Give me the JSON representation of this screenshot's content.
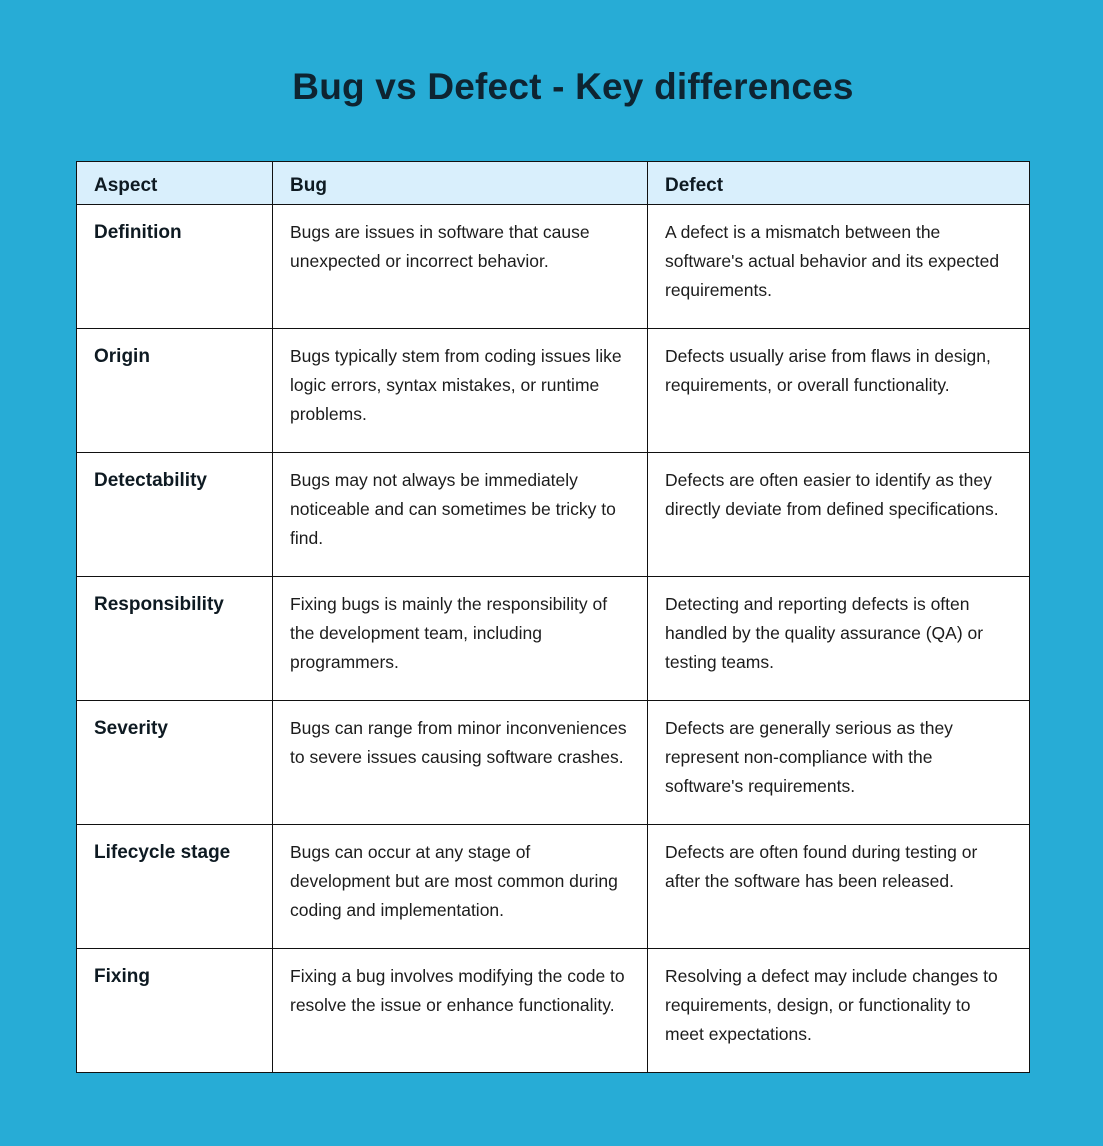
{
  "title": "Bug vs Defect - Key differences",
  "colors": {
    "background": "#27acd6",
    "header_bg": "#d9effc",
    "border": "#111111"
  },
  "table": {
    "headers": [
      "Aspect",
      "Bug",
      "Defect"
    ],
    "rows": [
      {
        "aspect": "Definition",
        "bug": "Bugs are issues in software that cause unexpected or incorrect behavior.",
        "defect": "A defect is a mismatch between the software's actual behavior and its expected requirements."
      },
      {
        "aspect": "Origin",
        "bug": "Bugs typically stem from coding issues like logic errors, syntax mistakes, or runtime problems.",
        "defect": "Defects usually arise from flaws in design, requirements, or overall functionality."
      },
      {
        "aspect": "Detectability",
        "bug": "Bugs may not always be immediately noticeable and can sometimes be tricky to find.",
        "defect": "Defects are often easier to identify as they directly deviate from defined specifications."
      },
      {
        "aspect": "Responsibility",
        "bug": "Fixing bugs is mainly the responsibility of the development team, including programmers.",
        "defect": "Detecting and reporting defects is often handled by the quality assurance (QA) or testing teams."
      },
      {
        "aspect": "Severity",
        "bug": "Bugs can range from minor inconveniences to severe issues causing software crashes.",
        "defect": "Defects are generally serious as they represent non-compliance with the software's requirements."
      },
      {
        "aspect": "Lifecycle stage",
        "bug": "Bugs can occur at any stage of development but are most common during coding and implementation.",
        "defect": "Defects are often found during testing or after the software has been released."
      },
      {
        "aspect": "Fixing",
        "bug": "Fixing a bug involves modifying the code to resolve the issue or enhance functionality.",
        "defect": "Resolving a defect may include changes to requirements, design, or functionality to meet expectations."
      }
    ]
  }
}
